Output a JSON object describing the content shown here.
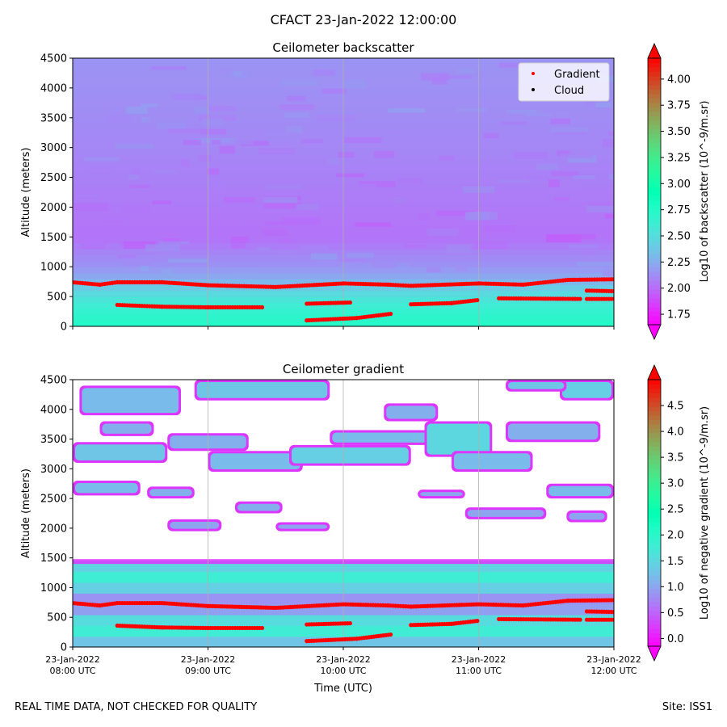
{
  "suptitle": "CFACT 23-Jan-2022 12:00:00",
  "footer": {
    "left": "REAL TIME DATA, NOT CHECKED FOR QUALITY",
    "right": "Site: ISS1"
  },
  "colors": {
    "gradient_marker": "#ff0000",
    "cloud_marker": "#000000",
    "gridline": "#b0b0b0",
    "colormap": "rainbow"
  },
  "chart_data": [
    {
      "type": "heatmap",
      "title": "Ceilometer backscatter",
      "ylabel": "Altitude (meters)",
      "xlabel": "",
      "xlim_hours_utc": [
        8,
        12
      ],
      "ylim": [
        0,
        4500
      ],
      "yticks": [
        0,
        500,
        1000,
        1500,
        2000,
        2500,
        3000,
        3500,
        4000,
        4500
      ],
      "xticks": [
        "23-Jan-2022\n08:00 UTC",
        "23-Jan-2022\n09:00 UTC",
        "23-Jan-2022\n10:00 UTC",
        "23-Jan-2022\n11:00 UTC",
        "23-Jan-2022\n12:00 UTC"
      ],
      "show_xticklabels": false,
      "grid": "vertical",
      "legend": {
        "placement": "top-right",
        "entries": [
          "Gradient",
          "Cloud"
        ]
      },
      "colorbar": {
        "label": "Log10 of backscatter (10^-9/m.sr)",
        "range": [
          1.65,
          4.2
        ],
        "ticks": [
          "1.75",
          "2.00",
          "2.25",
          "2.50",
          "2.75",
          "3.00",
          "3.25",
          "3.50",
          "3.75",
          "4.00"
        ],
        "extend": "both"
      },
      "field_profile": [
        {
          "alt": 0,
          "value": 2.75
        },
        {
          "alt": 300,
          "value": 2.65
        },
        {
          "alt": 600,
          "value": 2.45
        },
        {
          "alt": 800,
          "value": 2.25
        },
        {
          "alt": 1000,
          "value": 2.15
        },
        {
          "alt": 1500,
          "value": 2.03
        },
        {
          "alt": 2500,
          "value": 2.08
        },
        {
          "alt": 3500,
          "value": 2.12
        },
        {
          "alt": 4500,
          "value": 2.15
        }
      ],
      "gradient_points": [
        {
          "name": "upper layer",
          "x": [
            8.0,
            8.2,
            8.33,
            8.66,
            9.0,
            9.5,
            10.0,
            10.33,
            10.5,
            11.0,
            11.33,
            11.66,
            12.0
          ],
          "y": [
            740,
            700,
            740,
            740,
            690,
            660,
            720,
            700,
            680,
            720,
            700,
            780,
            790
          ]
        },
        {
          "name": "lower layer A",
          "x": [
            8.33,
            8.66,
            9.0,
            9.4
          ],
          "y": [
            360,
            330,
            320,
            320
          ]
        },
        {
          "name": "lower layer B",
          "x": [
            9.73,
            10.05
          ],
          "y": [
            380,
            400
          ]
        },
        {
          "name": "lower layer C",
          "x": [
            9.73,
            10.1,
            10.35
          ],
          "y": [
            100,
            140,
            210
          ]
        },
        {
          "name": "lower layer D",
          "x": [
            10.5,
            10.8,
            10.99
          ],
          "y": [
            370,
            390,
            440
          ]
        },
        {
          "name": "lower layer E",
          "x": [
            11.15,
            11.75
          ],
          "y": [
            470,
            460
          ]
        },
        {
          "name": "lower layer F",
          "x": [
            11.8,
            12.0
          ],
          "y": [
            600,
            590
          ]
        },
        {
          "name": "lower layer G",
          "x": [
            11.8,
            12.0
          ],
          "y": [
            460,
            460
          ]
        }
      ]
    },
    {
      "type": "heatmap",
      "title": "Ceilometer gradient",
      "ylabel": "Altitude (meters)",
      "xlabel": "Time (UTC)",
      "xlim_hours_utc": [
        8,
        12
      ],
      "ylim": [
        0,
        4500
      ],
      "yticks": [
        0,
        500,
        1000,
        1500,
        2000,
        2500,
        3000,
        3500,
        4000,
        4500
      ],
      "xticks": [
        "23-Jan-2022\n08:00 UTC",
        "23-Jan-2022\n09:00 UTC",
        "23-Jan-2022\n10:00 UTC",
        "23-Jan-2022\n11:00 UTC",
        "23-Jan-2022\n12:00 UTC"
      ],
      "show_xticklabels": true,
      "grid": "vertical",
      "colorbar": {
        "label": "Log10 of negative gradient (10^-9/m.sr)",
        "range": [
          -0.15,
          5.0
        ],
        "ticks": [
          "0.0",
          "0.5",
          "1.0",
          "1.5",
          "2.0",
          "2.5",
          "3.0",
          "3.5",
          "4.0",
          "4.5"
        ],
        "extend": "both"
      },
      "boundary_layer": {
        "top": 1450,
        "value": 1.3
      },
      "cloud_patches": [
        {
          "x": [
            8.05,
            8.8
          ],
          "y": [
            3900,
            4400
          ],
          "value": 1.2
        },
        {
          "x": [
            8.2,
            8.6
          ],
          "y": [
            3550,
            3800
          ],
          "value": 1.1
        },
        {
          "x": [
            8.0,
            8.7
          ],
          "y": [
            3100,
            3450
          ],
          "value": 1.3
        },
        {
          "x": [
            8.0,
            8.5
          ],
          "y": [
            2550,
            2800
          ],
          "value": 1.2
        },
        {
          "x": [
            8.7,
            9.3
          ],
          "y": [
            3300,
            3600
          ],
          "value": 1.1
        },
        {
          "x": [
            9.0,
            9.7
          ],
          "y": [
            2950,
            3300
          ],
          "value": 1.2
        },
        {
          "x": [
            8.9,
            9.9
          ],
          "y": [
            4150,
            4500
          ],
          "value": 1.3
        },
        {
          "x": [
            9.2,
            9.55
          ],
          "y": [
            2250,
            2450
          ],
          "value": 1.1
        },
        {
          "x": [
            8.7,
            9.1
          ],
          "y": [
            1950,
            2150
          ],
          "value": 1.0
        },
        {
          "x": [
            9.5,
            9.9
          ],
          "y": [
            1950,
            2100
          ],
          "value": 1.0
        },
        {
          "x": [
            9.6,
            10.5
          ],
          "y": [
            3050,
            3400
          ],
          "value": 1.4
        },
        {
          "x": [
            9.9,
            10.9
          ],
          "y": [
            3400,
            3650
          ],
          "value": 1.2
        },
        {
          "x": [
            10.3,
            10.7
          ],
          "y": [
            3800,
            4100
          ],
          "value": 1.1
        },
        {
          "x": [
            10.6,
            11.1
          ],
          "y": [
            3200,
            3800
          ],
          "value": 1.5
        },
        {
          "x": [
            10.8,
            11.4
          ],
          "y": [
            2950,
            3300
          ],
          "value": 1.2
        },
        {
          "x": [
            10.9,
            11.5
          ],
          "y": [
            2150,
            2350
          ],
          "value": 1.0
        },
        {
          "x": [
            11.2,
            11.9
          ],
          "y": [
            3450,
            3800
          ],
          "value": 1.1
        },
        {
          "x": [
            11.6,
            12.0
          ],
          "y": [
            4150,
            4500
          ],
          "value": 1.4
        },
        {
          "x": [
            11.5,
            12.0
          ],
          "y": [
            2500,
            2750
          ],
          "value": 1.2
        },
        {
          "x": [
            11.65,
            11.95
          ],
          "y": [
            2100,
            2300
          ],
          "value": 1.0
        },
        {
          "x": [
            11.2,
            11.65
          ],
          "y": [
            4300,
            4500
          ],
          "value": 1.3
        },
        {
          "x": [
            10.55,
            10.9
          ],
          "y": [
            2500,
            2650
          ],
          "value": 1.0
        },
        {
          "x": [
            8.55,
            8.9
          ],
          "y": [
            2500,
            2700
          ],
          "value": 1.1
        }
      ]
    }
  ]
}
